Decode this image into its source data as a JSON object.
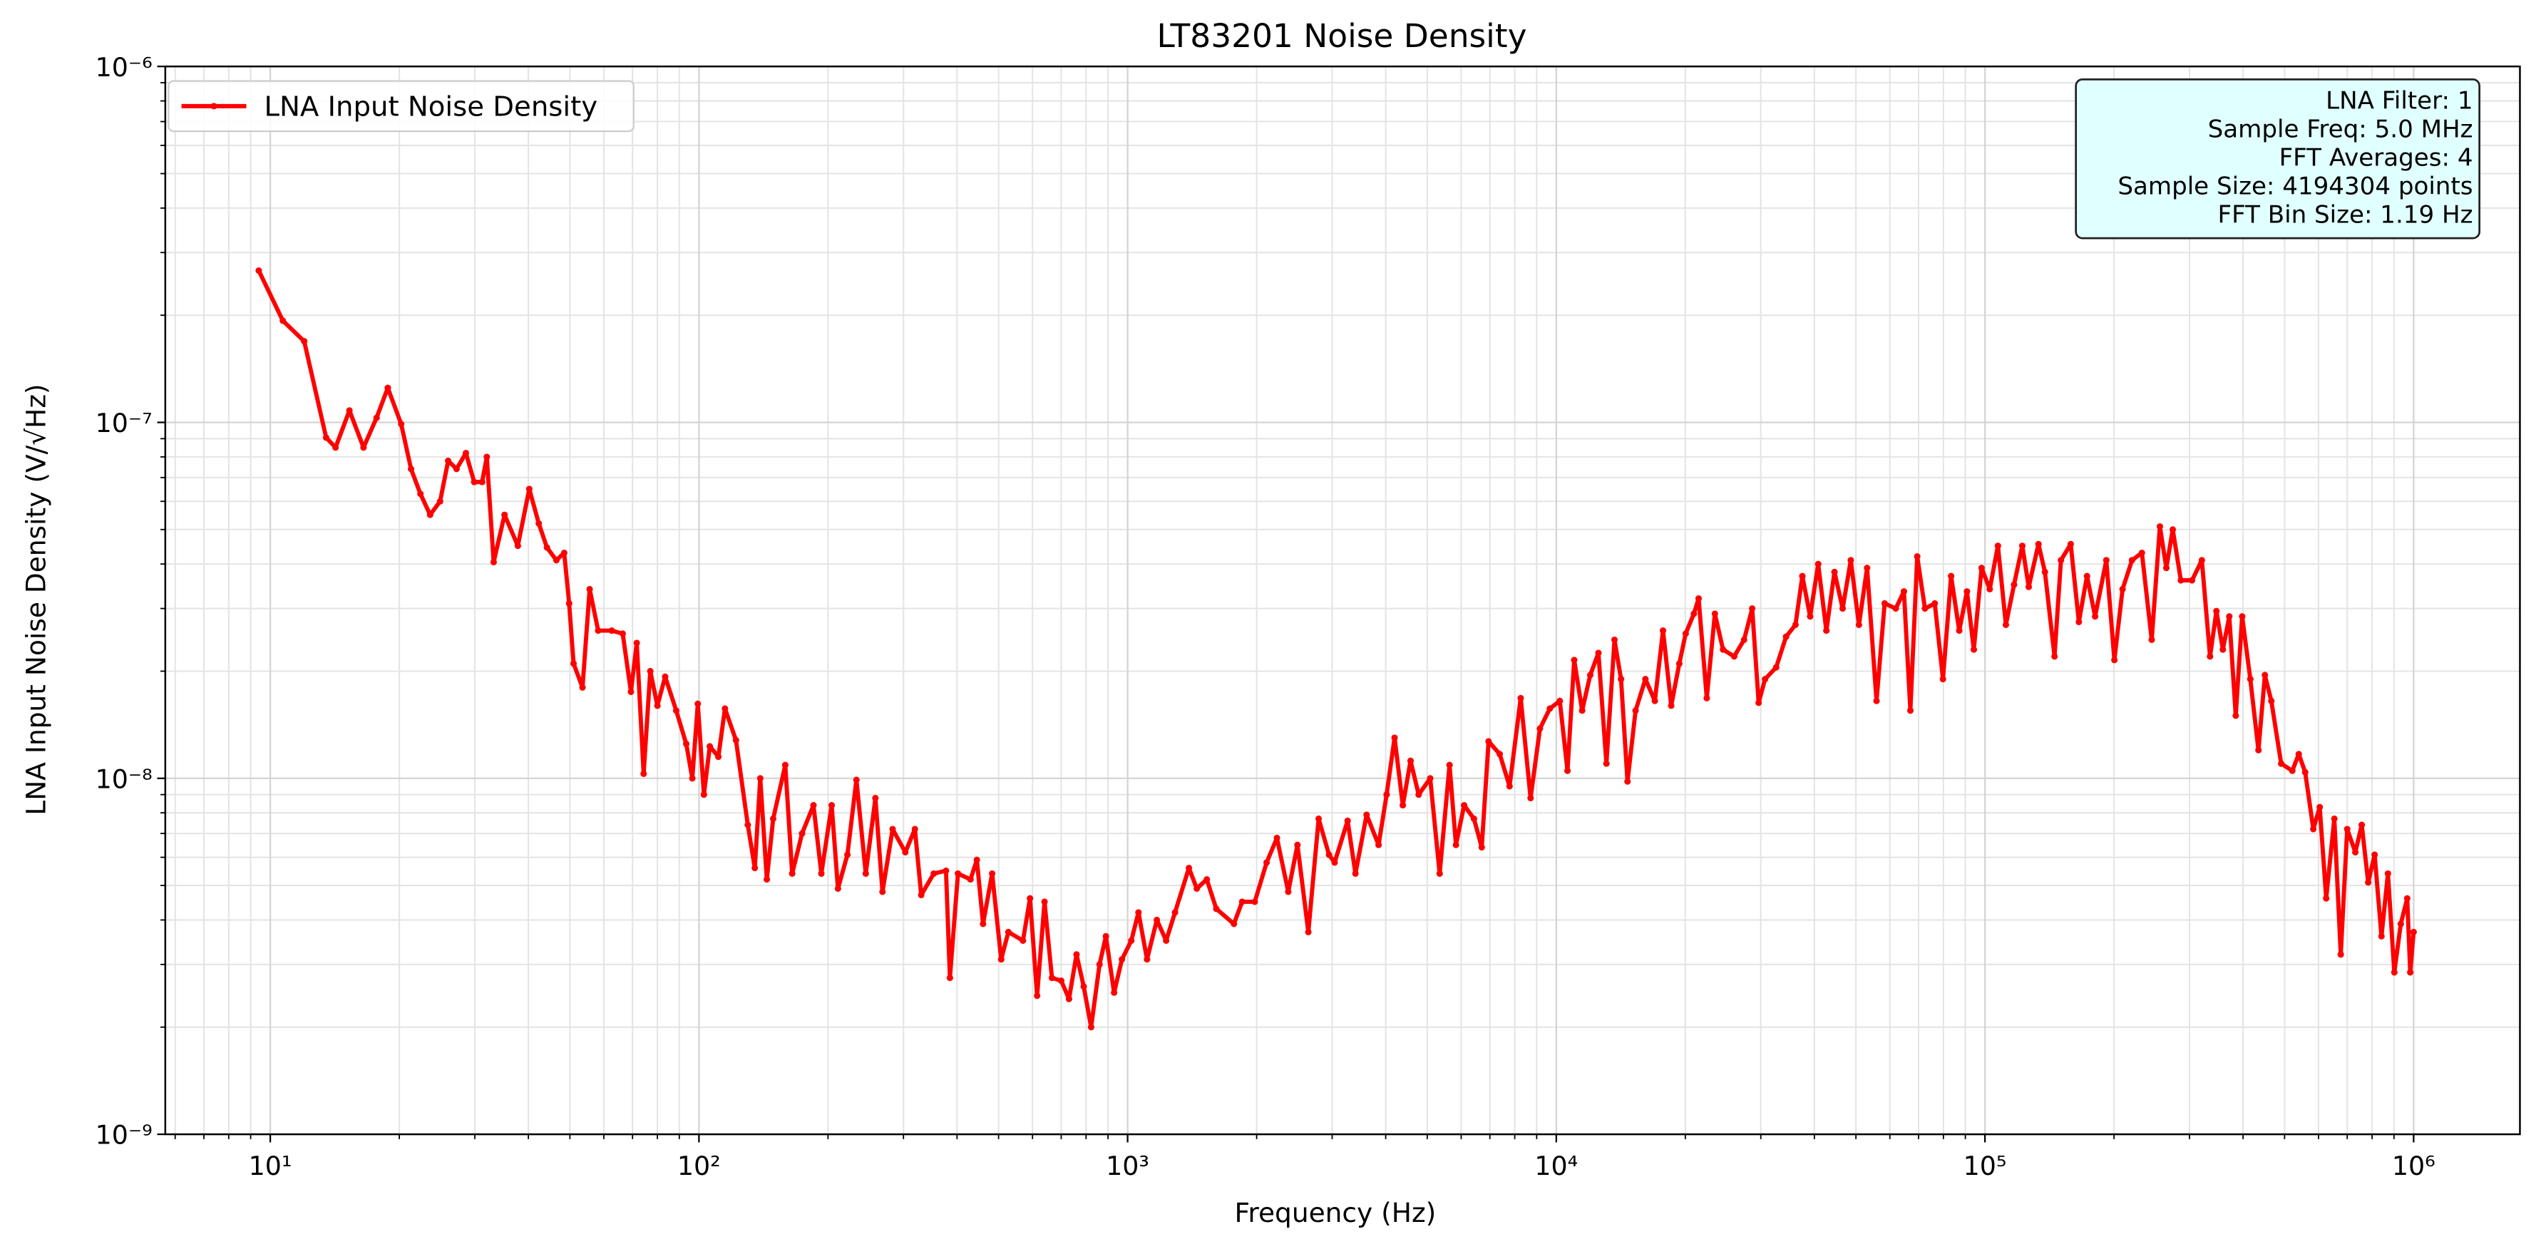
{
  "chart_data": {
    "type": "line",
    "title": "LT83201 Noise Density",
    "xlabel": "Frequency (Hz)",
    "ylabel": "LNA Input Noise Density (V/√Hz)",
    "xscale": "log",
    "yscale": "log",
    "xlim": [
      5.69,
      1770000
    ],
    "ylim": [
      1e-09,
      1e-06
    ],
    "xticks": [
      {
        "value": 10,
        "label": "10¹"
      },
      {
        "value": 100,
        "label": "10²"
      },
      {
        "value": 1000,
        "label": "10³"
      },
      {
        "value": 10000,
        "label": "10⁴"
      },
      {
        "value": 100000,
        "label": "10⁵"
      },
      {
        "value": 1000000,
        "label": "10⁶"
      }
    ],
    "yticks": [
      {
        "value": 1e-09,
        "label": "10⁻⁹"
      },
      {
        "value": 1e-08,
        "label": "10⁻⁸"
      },
      {
        "value": 1e-07,
        "label": "10⁻⁷"
      },
      {
        "value": 1e-06,
        "label": "10⁻⁶"
      }
    ],
    "xminorticks": [
      6,
      7,
      8,
      9,
      20,
      30,
      40,
      50,
      60,
      70,
      80,
      90,
      200,
      300,
      400,
      500,
      600,
      700,
      800,
      900,
      2000,
      3000,
      4000,
      5000,
      6000,
      7000,
      8000,
      9000,
      20000,
      30000,
      40000,
      50000,
      60000,
      70000,
      80000,
      90000,
      200000,
      300000,
      400000,
      500000,
      600000,
      700000,
      800000,
      900000
    ],
    "yminorticks": [
      2e-09,
      3e-09,
      4e-09,
      5e-09,
      6e-09,
      7e-09,
      8e-09,
      9e-09,
      2e-08,
      3e-08,
      4e-08,
      5e-08,
      6e-08,
      7e-08,
      8e-08,
      9e-08,
      2e-07,
      3e-07,
      4e-07,
      5e-07,
      6e-07,
      7e-07,
      8e-07,
      9e-07
    ],
    "grid": true,
    "legend": "upper left",
    "text_box": {
      "loc": "upper right",
      "lines": [
        "LNA Filter: 1",
        "Sample Freq: 5.0 MHz",
        "FFT Averages: 4",
        "Sample Size: 4194304 points",
        "FFT Bin Size: 1.19 Hz"
      ]
    },
    "x": [
      9.4,
      10.7,
      12,
      13.5,
      14.2,
      15.3,
      16.5,
      17.7,
      18.8,
      20.2,
      21.3,
      22.4,
      23.6,
      24.9,
      26,
      27.2,
      28.6,
      29.9,
      31.2,
      32,
      33.2,
      35.2,
      37.8,
      40.2,
      42.3,
      44.2,
      46.5,
      48.5,
      49.8,
      51,
      53.5,
      55.6,
      58.2,
      62.6,
      66.4,
      69.4,
      71.6,
      74.3,
      77,
      80,
      83.4,
      88.5,
      93.4,
      96.5,
      99.4,
      102.7,
      106,
      111,
      115,
      122,
      130,
      135,
      139,
      144,
      149,
      159,
      165,
      174,
      185,
      193,
      204,
      211,
      222,
      233,
      245,
      258,
      268,
      283,
      303,
      319,
      330,
      353,
      377,
      385,
      402,
      430,
      445,
      460,
      483,
      507,
      527,
      570,
      592,
      615,
      640,
      666,
      700,
      730,
      760,
      790,
      822,
      860,
      890,
      930,
      970,
      1020,
      1060,
      1110,
      1170,
      1230,
      1290,
      1390,
      1450,
      1530,
      1610,
      1770,
      1850,
      1980,
      2110,
      2230,
      2370,
      2490,
      2640,
      2790,
      2950,
      3040,
      3260,
      3400,
      3610,
      3850,
      4020,
      4195,
      4385,
      4571,
      4775,
      5080,
      5345,
      5636,
      5834,
      6095,
      6426,
      6700,
      6950,
      7380,
      7780,
      8260,
      8710,
      9160,
      9660,
      10190,
      10620,
      11010,
      11490,
      12000,
      12540,
      13090,
      13670,
      14160,
      14660,
      15310,
      16140,
      16980,
      17740,
      18540,
      19360,
      20040,
      20940,
      21480,
      22440,
      23440,
      24490,
      26000,
      27420,
      28640,
      29650,
      30690,
      32580,
      34360,
      36140,
      37500,
      39100,
      40830,
      42660,
      44560,
      46560,
      48640,
      50820,
      53090,
      55850,
      58340,
      61940,
      64710,
      66990,
      69500,
      72440,
      76380,
      79800,
      83370,
      87100,
      90780,
      94190,
      98200,
      102600,
      107200,
      111900,
      116900,
      122200,
      126500,
      133300,
      138000,
      145300,
      150400,
      158500,
      165600,
      173000,
      180700,
      191900,
      200400,
      209400,
      220300,
      232300,
      244900,
      255900,
      264900,
      274200,
      286400,
      304100,
      320600,
      335000,
      346700,
      358900,
      371500,
      384600,
      398100,
      415900,
      434500,
      449800,
      465600,
      490900,
      521200,
      539500,
      558500,
      583400,
      603900,
      625200,
      653100,
      676100,
      699800,
      731100,
      756800,
      783400,
      811000,
      841400,
      871000,
      901500,
      933300,
      966100,
      982000,
      1000000
    ],
    "series": [
      {
        "name": "LNA Input Noise Density",
        "color": "#ff0000",
        "values": [
          2.67e-07,
          1.93e-07,
          1.69e-07,
          9.06e-08,
          8.5e-08,
          1.08e-07,
          8.5e-08,
          1.03e-07,
          1.25e-07,
          9.9e-08,
          7.4e-08,
          6.3e-08,
          5.5e-08,
          6e-08,
          7.8e-08,
          7.4e-08,
          8.2e-08,
          6.8e-08,
          6.8e-08,
          8e-08,
          4.05e-08,
          5.5e-08,
          4.5e-08,
          6.5e-08,
          5.2e-08,
          4.45e-08,
          4.1e-08,
          4.3e-08,
          3.1e-08,
          2.1e-08,
          1.8e-08,
          3.4e-08,
          2.6e-08,
          2.6e-08,
          2.55e-08,
          1.75e-08,
          2.4e-08,
          1.03e-08,
          2e-08,
          1.6e-08,
          1.93e-08,
          1.55e-08,
          1.25e-08,
          1e-08,
          1.62e-08,
          9e-09,
          1.23e-08,
          1.15e-08,
          1.57e-08,
          1.28e-08,
          7.4e-09,
          5.6e-09,
          1e-08,
          5.2e-09,
          7.7e-09,
          1.09e-08,
          5.4e-09,
          7e-09,
          8.4e-09,
          5.4e-09,
          8.4e-09,
          4.9e-09,
          6.1e-09,
          9.9e-09,
          5.4e-09,
          8.8e-09,
          4.8e-09,
          7.2e-09,
          6.2e-09,
          7.2e-09,
          4.7e-09,
          5.4e-09,
          5.5e-09,
          2.75e-09,
          5.4e-09,
          5.2e-09,
          5.9e-09,
          3.9e-09,
          5.4e-09,
          3.1e-09,
          3.7e-09,
          3.5e-09,
          4.6e-09,
          2.45e-09,
          4.5e-09,
          2.75e-09,
          2.7e-09,
          2.4e-09,
          3.2e-09,
          2.6e-09,
          2e-09,
          3e-09,
          3.6e-09,
          2.5e-09,
          3.1e-09,
          3.5e-09,
          4.2e-09,
          3.1e-09,
          4e-09,
          3.5e-09,
          4.2e-09,
          5.6e-09,
          4.9e-09,
          5.2e-09,
          4.3e-09,
          3.9e-09,
          4.5e-09,
          4.5e-09,
          5.8e-09,
          6.8e-09,
          4.8e-09,
          6.5e-09,
          3.7e-09,
          7.7e-09,
          6.1e-09,
          5.8e-09,
          7.6e-09,
          5.4e-09,
          7.9e-09,
          6.5e-09,
          9e-09,
          1.3e-08,
          8.4e-09,
          1.12e-08,
          9e-09,
          1e-08,
          5.4e-09,
          1.09e-08,
          6.5e-09,
          8.4e-09,
          7.7e-09,
          6.4e-09,
          1.27e-08,
          1.17e-08,
          9.5e-09,
          1.68e-08,
          8.8e-09,
          1.38e-08,
          1.57e-08,
          1.65e-08,
          1.05e-08,
          2.15e-08,
          1.55e-08,
          1.95e-08,
          2.25e-08,
          1.1e-08,
          2.45e-08,
          1.9e-08,
          9.8e-09,
          1.55e-08,
          1.9e-08,
          1.65e-08,
          2.6e-08,
          1.6e-08,
          2.1e-08,
          2.55e-08,
          2.9e-08,
          3.2e-08,
          1.68e-08,
          2.9e-08,
          2.3e-08,
          2.2e-08,
          2.45e-08,
          3e-08,
          1.63e-08,
          1.9e-08,
          2.05e-08,
          2.5e-08,
          2.7e-08,
          3.7e-08,
          2.85e-08,
          4e-08,
          2.6e-08,
          3.8e-08,
          3e-08,
          4.1e-08,
          2.7e-08,
          3.9e-08,
          1.65e-08,
          3.1e-08,
          3e-08,
          3.35e-08,
          1.55e-08,
          4.2e-08,
          3e-08,
          3.1e-08,
          1.9e-08,
          3.7e-08,
          2.6e-08,
          3.35e-08,
          2.3e-08,
          3.9e-08,
          3.4e-08,
          4.5e-08,
          2.7e-08,
          3.5e-08,
          4.5e-08,
          3.45e-08,
          4.55e-08,
          3.8e-08,
          2.2e-08,
          4.1e-08,
          4.55e-08,
          2.75e-08,
          3.7e-08,
          2.85e-08,
          4.1e-08,
          2.15e-08,
          3.4e-08,
          4.1e-08,
          4.3e-08,
          2.45e-08,
          5.1e-08,
          3.9e-08,
          5e-08,
          3.6e-08,
          3.6e-08,
          4.1e-08,
          2.2e-08,
          2.95e-08,
          2.3e-08,
          2.85e-08,
          1.5e-08,
          2.85e-08,
          1.9e-08,
          1.2e-08,
          1.95e-08,
          1.65e-08,
          1.1e-08,
          1.05e-08,
          1.17e-08,
          1.04e-08,
          7.2e-09,
          8.3e-09,
          4.6e-09,
          7.7e-09,
          3.2e-09,
          7.2e-09,
          6.2e-09,
          7.4e-09,
          5.1e-09,
          6.1e-09,
          3.6e-09,
          5.4e-09,
          2.85e-09,
          3.9e-09,
          4.6e-09,
          2.85e-09,
          3.7e-09
        ]
      }
    ]
  }
}
